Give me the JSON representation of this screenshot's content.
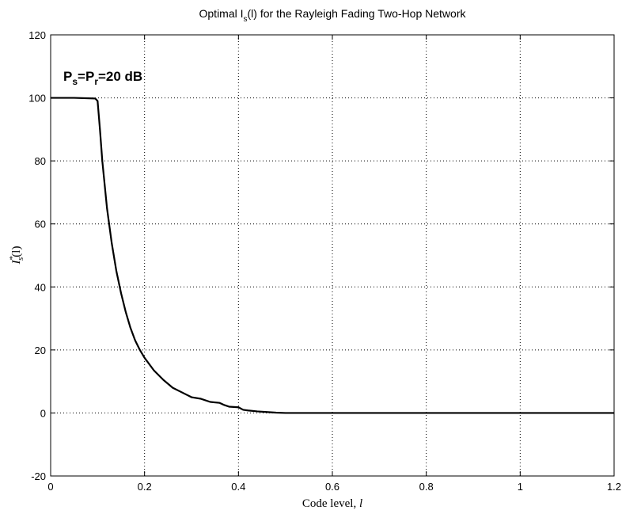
{
  "chart_data": {
    "type": "line",
    "title": {
      "prefix": "Optimal I",
      "sub": "s",
      "suffix": "(l) for the Rayleigh Fading Two-Hop Network"
    },
    "xlabel": {
      "text": "Code level, ",
      "var": "l"
    },
    "ylabel": {
      "base": "I",
      "sup": "*",
      "sub": "s",
      "arg": "(l)"
    },
    "xlim": [
      0,
      1.2
    ],
    "ylim": [
      -20,
      120
    ],
    "xticks": [
      0,
      0.2,
      0.4,
      0.6,
      0.8,
      1,
      1.2
    ],
    "xtick_labels": [
      "0",
      "0.2",
      "0.4",
      "0.6",
      "0.8",
      "1",
      "1.2"
    ],
    "yticks": [
      -20,
      0,
      20,
      40,
      60,
      80,
      100,
      120
    ],
    "ytick_labels": [
      "-20",
      "0",
      "20",
      "40",
      "60",
      "80",
      "100",
      "120"
    ],
    "grid": true,
    "grid_style": "dotted",
    "annotation": {
      "p1": "P",
      "s1": "s",
      "eq": "=P",
      "s2": "r",
      "rest": "=20 dB"
    },
    "series": [
      {
        "color": "#000000",
        "x": [
          0,
          0.05,
          0.095,
          0.1,
          0.105,
          0.11,
          0.12,
          0.13,
          0.14,
          0.15,
          0.16,
          0.17,
          0.18,
          0.19,
          0.2,
          0.22,
          0.24,
          0.26,
          0.28,
          0.3,
          0.32,
          0.34,
          0.36,
          0.37,
          0.38,
          0.4,
          0.41,
          0.42,
          0.44,
          0.46,
          0.48,
          0.5,
          0.6,
          0.7,
          0.8,
          0.9,
          1.0,
          1.1,
          1.2
        ],
        "y": [
          100,
          100,
          99.8,
          99,
          90,
          80,
          65,
          54,
          45,
          38,
          32,
          27,
          23,
          20,
          17.5,
          13.5,
          10.5,
          8,
          6.5,
          5,
          4.5,
          3.5,
          3.2,
          2.5,
          2,
          1.8,
          1,
          0.8,
          0.5,
          0.3,
          0.1,
          0,
          0,
          0,
          0,
          0,
          0,
          0,
          0
        ]
      }
    ]
  }
}
